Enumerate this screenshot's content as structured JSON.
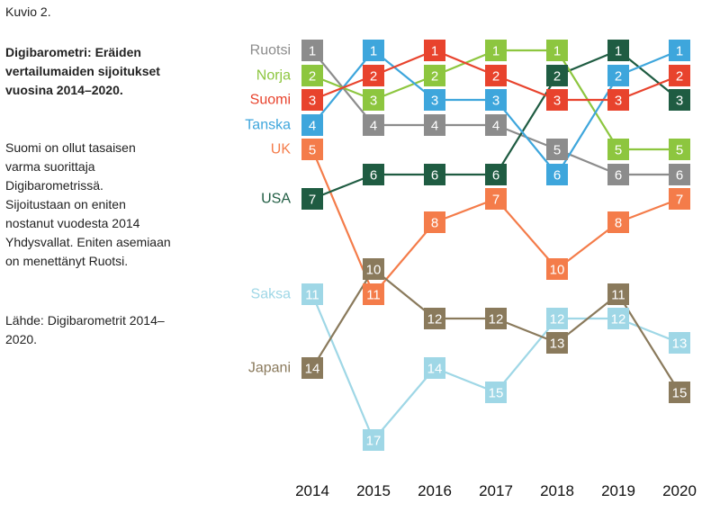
{
  "figure_number": "Kuvio 2.",
  "title": "Digibarometri: Eräiden vertailumaiden sijoitukset vuosina 2014–2020.",
  "description": "Suomi on ollut tasaisen varma suorittaja Digibarometrissä. Sijoitustaan on eniten nostanut vuodesta 2014 Yhdysvallat. Eniten asemiaan on menettänyt Ruotsi.",
  "source": "Lähde: Digibarometrit 2014–2020.",
  "chart_data": {
    "type": "line",
    "x": [
      2014,
      2015,
      2016,
      2017,
      2018,
      2019,
      2020
    ],
    "series": [
      {
        "name": "Ruotsi",
        "color": "#8c8c8c",
        "values": [
          1,
          4,
          4,
          4,
          5,
          6,
          6
        ]
      },
      {
        "name": "Norja",
        "color": "#8dc63f",
        "values": [
          2,
          3,
          2,
          1,
          1,
          5,
          5
        ]
      },
      {
        "name": "Suomi",
        "color": "#e8432d",
        "values": [
          3,
          2,
          1,
          2,
          3,
          3,
          2
        ]
      },
      {
        "name": "Tanska",
        "color": "#3ea6dc",
        "values": [
          4,
          1,
          3,
          3,
          6,
          2,
          1
        ]
      },
      {
        "name": "UK",
        "color": "#f47c4a",
        "values": [
          5,
          11,
          8,
          7,
          10,
          8,
          7
        ]
      },
      {
        "name": "USA",
        "color": "#1f5c42",
        "values": [
          7,
          6,
          6,
          6,
          2,
          1,
          3
        ]
      },
      {
        "name": "Saksa",
        "color": "#9fd7e6",
        "values": [
          11,
          17,
          14,
          15,
          12,
          12,
          13
        ]
      },
      {
        "name": "Japani",
        "color": "#8a7a5c",
        "values": [
          14,
          10,
          12,
          12,
          13,
          11,
          15
        ]
      }
    ],
    "y_axis": {
      "inverted": true
    }
  }
}
